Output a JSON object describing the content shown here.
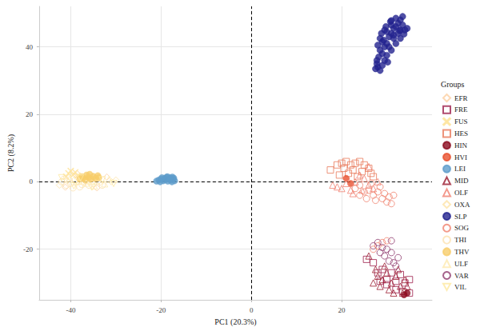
{
  "chart_data": {
    "type": "scatter",
    "x_label": "PC1 (20.3%)",
    "y_label": "PC2 (8.2%)",
    "legend_title": "Groups",
    "legend": "right",
    "grid": true,
    "xlim": [
      -47,
      40
    ],
    "xticks": [
      -40,
      -20,
      0,
      20
    ],
    "ylim": [
      -35,
      52
    ],
    "yticks": [
      -20,
      0,
      20,
      40
    ],
    "reference_lines": [
      {
        "axis": "x",
        "value": 0
      },
      {
        "axis": "y",
        "value": 0
      }
    ],
    "series": [
      {
        "name": "EFR",
        "color": "#FDD0A2",
        "marker": "diamond-open",
        "values": [
          [
            -41.2,
            -1.6
          ],
          [
            -38.6,
            2.4
          ],
          [
            -34.2,
            -1.8
          ],
          [
            -32,
            1.4
          ]
        ]
      },
      {
        "name": "FRE",
        "color": "#9E1F4C",
        "marker": "square-open",
        "values": [
          [
            25.5,
            -23
          ],
          [
            27,
            -24
          ],
          [
            28,
            -27
          ],
          [
            29,
            -26
          ],
          [
            30,
            -29
          ],
          [
            31,
            -27
          ],
          [
            32,
            -29.5
          ],
          [
            33,
            -27.5
          ],
          [
            34,
            -30
          ],
          [
            35,
            -29
          ],
          [
            32,
            -32
          ],
          [
            30,
            -30.5
          ],
          [
            28.5,
            -29.5
          ],
          [
            33.5,
            -32.5
          ],
          [
            35,
            -33
          ]
        ]
      },
      {
        "name": "FUS",
        "color": "#FEE39B",
        "marker": "cross",
        "values": [
          [
            -40.5,
            2.5
          ],
          [
            -40,
            3.2
          ],
          [
            -39.5,
            2
          ],
          [
            -39,
            2.8
          ],
          [
            -38.5,
            1.8
          ],
          [
            -41,
            1.5
          ]
        ]
      },
      {
        "name": "HES",
        "color": "#E8795A",
        "marker": "square-open",
        "values": [
          [
            17.5,
            3.5
          ],
          [
            19,
            5
          ],
          [
            20,
            5.5
          ],
          [
            21,
            6
          ],
          [
            22,
            5
          ],
          [
            23,
            5.5
          ],
          [
            24,
            6
          ],
          [
            25,
            5
          ],
          [
            26,
            4
          ],
          [
            20.5,
            4
          ],
          [
            22.5,
            3.5
          ],
          [
            24.5,
            3
          ],
          [
            26.5,
            2.5
          ],
          [
            27,
            1.5
          ],
          [
            21.5,
            2.5
          ],
          [
            19.5,
            2
          ],
          [
            23.5,
            1.5
          ]
        ]
      },
      {
        "name": "HIN",
        "color": "#8B0A1E",
        "marker": "circle",
        "values": [
          [
            34.5,
            -33
          ],
          [
            33.8,
            -33.5
          ]
        ]
      },
      {
        "name": "HVI",
        "color": "#E8502E",
        "marker": "circle",
        "values": [
          [
            21,
            1
          ],
          [
            22,
            -0.5
          ]
        ]
      },
      {
        "name": "LEI",
        "color": "#5E9CCB",
        "marker": "circle",
        "values": [
          [
            -21,
            0.2
          ],
          [
            -20.5,
            0.5
          ],
          [
            -20,
            0.8
          ],
          [
            -19.5,
            0.3
          ],
          [
            -19.2,
            1.0
          ],
          [
            -19,
            0.6
          ],
          [
            -18.8,
            1.3
          ],
          [
            -18.5,
            0.2
          ],
          [
            -18.3,
            0.9
          ],
          [
            -18,
            1.2
          ],
          [
            -17.8,
            0.5
          ],
          [
            -17.5,
            1.4
          ],
          [
            -17.3,
            0.8
          ],
          [
            -17,
            0.3
          ],
          [
            -17.2,
            1.1
          ],
          [
            -18.6,
            1.5
          ],
          [
            -19.8,
            1.2
          ],
          [
            -20.2,
            0.0
          ],
          [
            -17.6,
            0.0
          ],
          [
            -18.1,
            0.7
          ]
        ]
      },
      {
        "name": "MID",
        "color": "#9B1B30",
        "marker": "triangle-open",
        "values": [
          [
            27,
            -30
          ],
          [
            28,
            -28
          ],
          [
            29,
            -29
          ],
          [
            30,
            -27
          ],
          [
            31,
            -30
          ],
          [
            32,
            -28
          ],
          [
            33,
            -31
          ],
          [
            34,
            -29
          ],
          [
            30.5,
            -32
          ],
          [
            29.5,
            -25
          ],
          [
            32.5,
            -26
          ],
          [
            31.5,
            -33
          ],
          [
            28.5,
            -31
          ],
          [
            33.5,
            -33
          ],
          [
            26,
            -22
          ],
          [
            27.5,
            -26
          ],
          [
            34.5,
            -31
          ]
        ]
      },
      {
        "name": "OLF",
        "color": "#F08070",
        "marker": "triangle-open",
        "values": [
          [
            18,
            -1
          ],
          [
            19,
            -1.5
          ],
          [
            20,
            -2
          ],
          [
            21,
            -0.5
          ],
          [
            22,
            -2.5
          ],
          [
            23,
            0
          ],
          [
            24,
            2
          ],
          [
            25,
            1
          ],
          [
            26,
            -1
          ],
          [
            24.5,
            -2.5
          ],
          [
            22.5,
            -3.5
          ],
          [
            27,
            -2
          ],
          [
            26,
            4.5
          ],
          [
            28,
            0
          ]
        ]
      },
      {
        "name": "OXA",
        "color": "#FEE4A8",
        "marker": "diamond-open",
        "values": [
          [
            -42.5,
            -1
          ],
          [
            -40.8,
            0.3
          ],
          [
            -38.8,
            -0.3
          ],
          [
            -36.3,
            0.2
          ],
          [
            -33.5,
            -0.2
          ],
          [
            -31,
            0
          ],
          [
            -30,
            0.5
          ]
        ]
      },
      {
        "name": "SLP",
        "color": "#23238E",
        "marker": "circle",
        "values": [
          [
            28,
            34
          ],
          [
            27.5,
            33.5
          ],
          [
            28.5,
            33
          ],
          [
            29,
            34.5
          ],
          [
            27.8,
            36
          ],
          [
            28.2,
            37
          ],
          [
            29,
            38
          ],
          [
            28.5,
            39
          ],
          [
            29.5,
            40
          ],
          [
            28,
            40.5
          ],
          [
            30,
            41
          ],
          [
            29.3,
            42
          ],
          [
            28.5,
            42.5
          ],
          [
            30.5,
            43
          ],
          [
            31,
            44
          ],
          [
            30,
            44.5
          ],
          [
            29.5,
            45
          ],
          [
            31.5,
            45.5
          ],
          [
            32,
            46
          ],
          [
            31,
            46.5
          ],
          [
            32.5,
            47
          ],
          [
            33,
            48
          ],
          [
            32,
            48.5
          ],
          [
            33.5,
            49
          ],
          [
            33,
            45
          ],
          [
            34,
            45
          ],
          [
            32.5,
            44
          ],
          [
            31.5,
            42.5
          ],
          [
            30.5,
            40
          ],
          [
            30,
            37.5
          ],
          [
            29.5,
            36
          ],
          [
            31,
            39
          ],
          [
            32,
            41
          ],
          [
            33,
            42.5
          ],
          [
            34.5,
            45.5
          ],
          [
            33.5,
            46.5
          ],
          [
            30.8,
            47.5
          ],
          [
            29.8,
            46
          ],
          [
            28.8,
            44
          ],
          [
            27.8,
            35
          ],
          [
            30.2,
            35.5
          ],
          [
            31.5,
            43.5
          ],
          [
            32.8,
            44.8
          ],
          [
            29,
            41.5
          ],
          [
            33.8,
            43.8
          ],
          [
            31,
            47.8
          ]
        ]
      },
      {
        "name": "SOG",
        "color": "#F0826E",
        "marker": "circle-open",
        "values": [
          [
            23,
            -2
          ],
          [
            24,
            -1
          ],
          [
            25,
            -3
          ],
          [
            26,
            -2.5
          ],
          [
            27,
            -4
          ],
          [
            28,
            -3
          ],
          [
            29,
            -5
          ],
          [
            30,
            -6
          ],
          [
            31,
            -6.5
          ],
          [
            27.5,
            -5.5
          ],
          [
            29.5,
            -3.5
          ],
          [
            26.5,
            -0.5
          ],
          [
            28.5,
            -1.5
          ],
          [
            30.5,
            -4.5
          ],
          [
            25.5,
            -5
          ],
          [
            24,
            -4
          ],
          [
            31.5,
            -4
          ],
          [
            28,
            -19
          ],
          [
            29,
            -18
          ],
          [
            30,
            -17.5
          ],
          [
            27,
            -20
          ]
        ]
      },
      {
        "name": "THI",
        "color": "#FDE2B0",
        "marker": "circle-open",
        "values": [
          [
            -42,
            0
          ],
          [
            -41,
            -1
          ],
          [
            -40,
            -0.5
          ],
          [
            -39,
            0.5
          ],
          [
            -38,
            -1.5
          ],
          [
            -37,
            0
          ],
          [
            -36,
            -1
          ],
          [
            -35,
            -0.5
          ],
          [
            -34,
            0.3
          ],
          [
            -33,
            -1
          ],
          [
            -39.5,
            -1.8
          ],
          [
            -37.5,
            -0.8
          ],
          [
            -41.5,
            0.8
          ]
        ]
      },
      {
        "name": "THV",
        "color": "#F8CD6A",
        "marker": "circle",
        "values": [
          [
            -37.5,
            1.5
          ],
          [
            -37,
            1
          ],
          [
            -36.5,
            2
          ],
          [
            -36,
            1.2
          ],
          [
            -35.5,
            0.8
          ],
          [
            -35,
            1.6
          ],
          [
            -34.5,
            1
          ],
          [
            -34,
            1.8
          ],
          [
            -36.8,
            0.5
          ],
          [
            -35.8,
            2.2
          ],
          [
            -33.8,
            1.2
          ],
          [
            -38,
            0.8
          ]
        ]
      },
      {
        "name": "ULF",
        "color": "#FEEAB0",
        "marker": "triangle-open",
        "values": [
          [
            -40.2,
            1
          ],
          [
            -38.2,
            0.2
          ],
          [
            -36.6,
            -0.4
          ],
          [
            -34.8,
            -1.2
          ],
          [
            -32.5,
            -0.6
          ],
          [
            -31.5,
            0.8
          ]
        ]
      },
      {
        "name": "VAR",
        "color": "#8E3B6E",
        "marker": "circle-open",
        "values": [
          [
            28,
            -18
          ],
          [
            29,
            -19.5
          ],
          [
            30,
            -20
          ],
          [
            31,
            -21
          ],
          [
            29.5,
            -22
          ],
          [
            30.5,
            -23.5
          ],
          [
            31.5,
            -24
          ],
          [
            32,
            -25
          ],
          [
            28.5,
            -21
          ],
          [
            27,
            -19
          ],
          [
            31,
            -17.5
          ],
          [
            32.5,
            -22.5
          ]
        ]
      },
      {
        "name": "VIL",
        "color": "#FEE9A0",
        "marker": "triangle-down-open",
        "values": [
          [
            -42,
            1.2
          ],
          [
            -39.3,
            -1.2
          ],
          [
            -37.8,
            1.2
          ],
          [
            -35.3,
            -1.6
          ],
          [
            -33,
            0.6
          ],
          [
            -30.5,
            -0.5
          ]
        ]
      }
    ]
  }
}
